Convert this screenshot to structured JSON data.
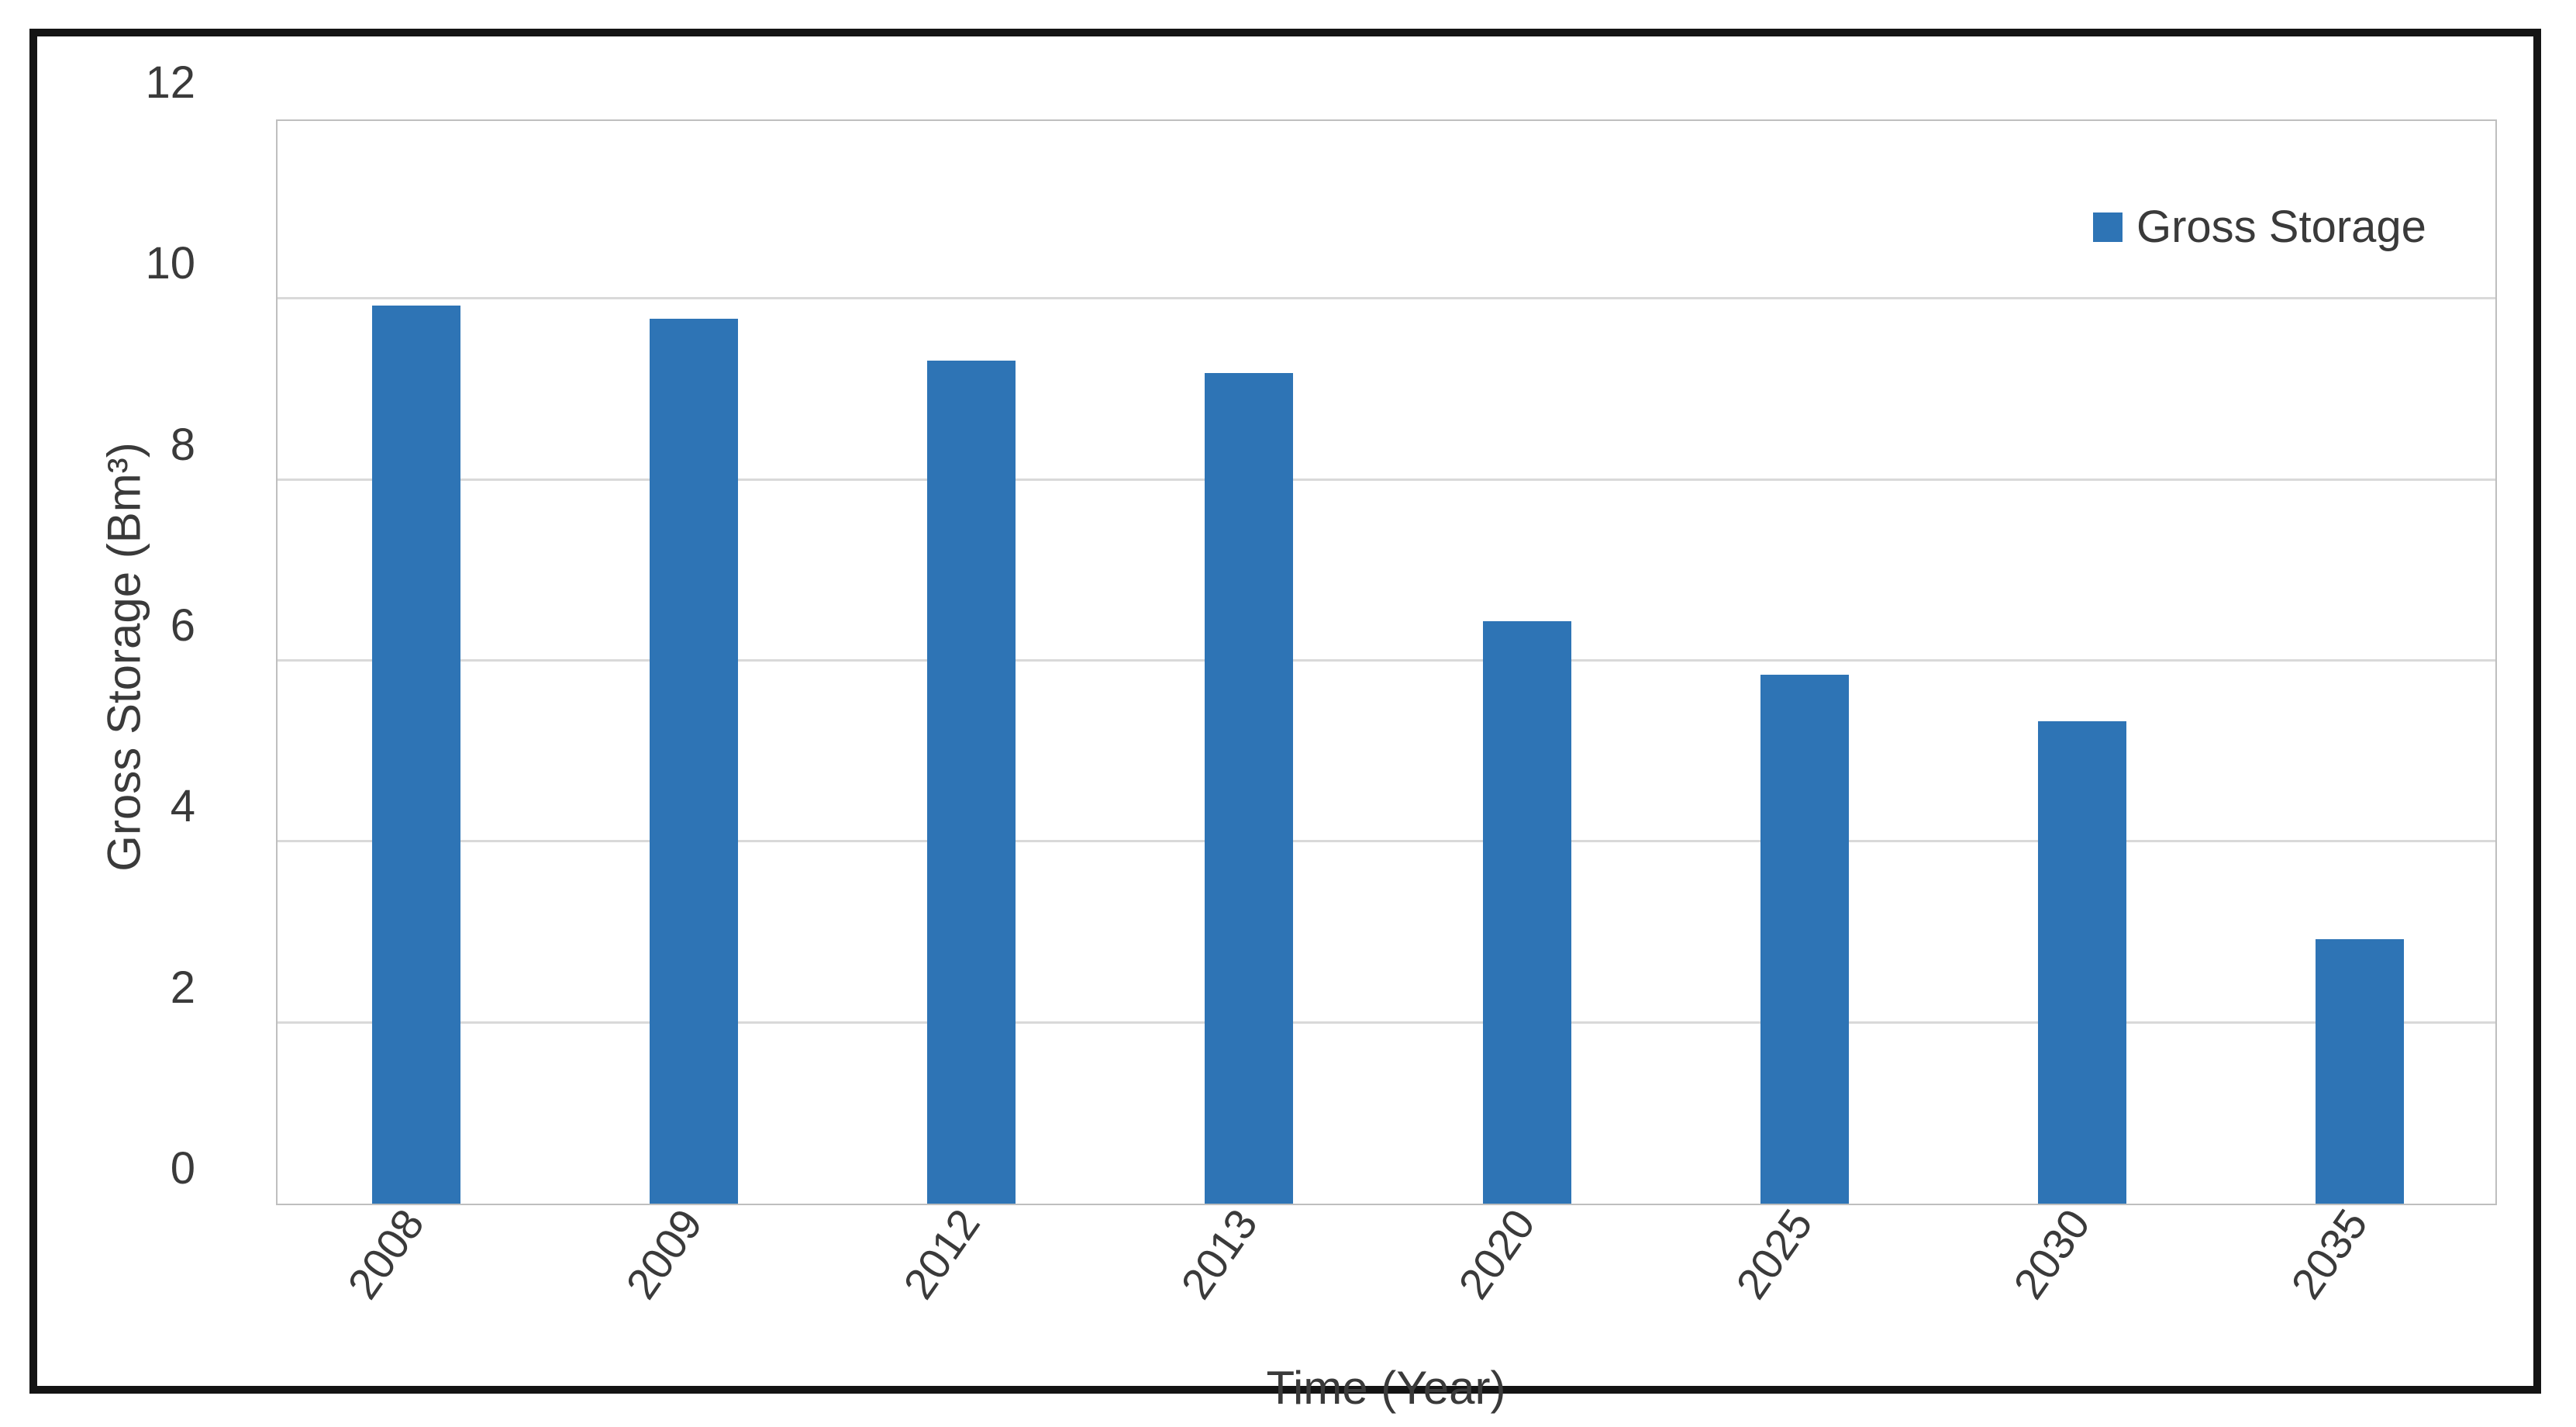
{
  "figure": {
    "background": "#ffffff",
    "frame_border_color": "#141414"
  },
  "chart_data": {
    "type": "bar",
    "title": "",
    "categories": [
      "2008",
      "2009",
      "2012",
      "2013",
      "2020",
      "2025",
      "2030",
      "2035"
    ],
    "series": [
      {
        "name": "Gross Storage",
        "values": [
          9.93,
          9.78,
          9.32,
          9.18,
          6.44,
          5.85,
          5.33,
          2.92
        ]
      }
    ],
    "xlabel": "Time (Year)",
    "ylabel": "Gross Storage (Bm³)",
    "ylim": [
      0,
      12
    ],
    "yticks": [
      0,
      2,
      4,
      6,
      8,
      10,
      12
    ],
    "grid": "horizontal",
    "legend": {
      "position": "top-right",
      "entries": [
        "Gross Storage"
      ]
    },
    "bar_color": "#2e74b5",
    "gridline_color": "#d9d9d9",
    "plot_border_color": "#bfbfbf",
    "axis_text_color": "#3a3a3a",
    "x_tick_rotation_deg": -55
  }
}
